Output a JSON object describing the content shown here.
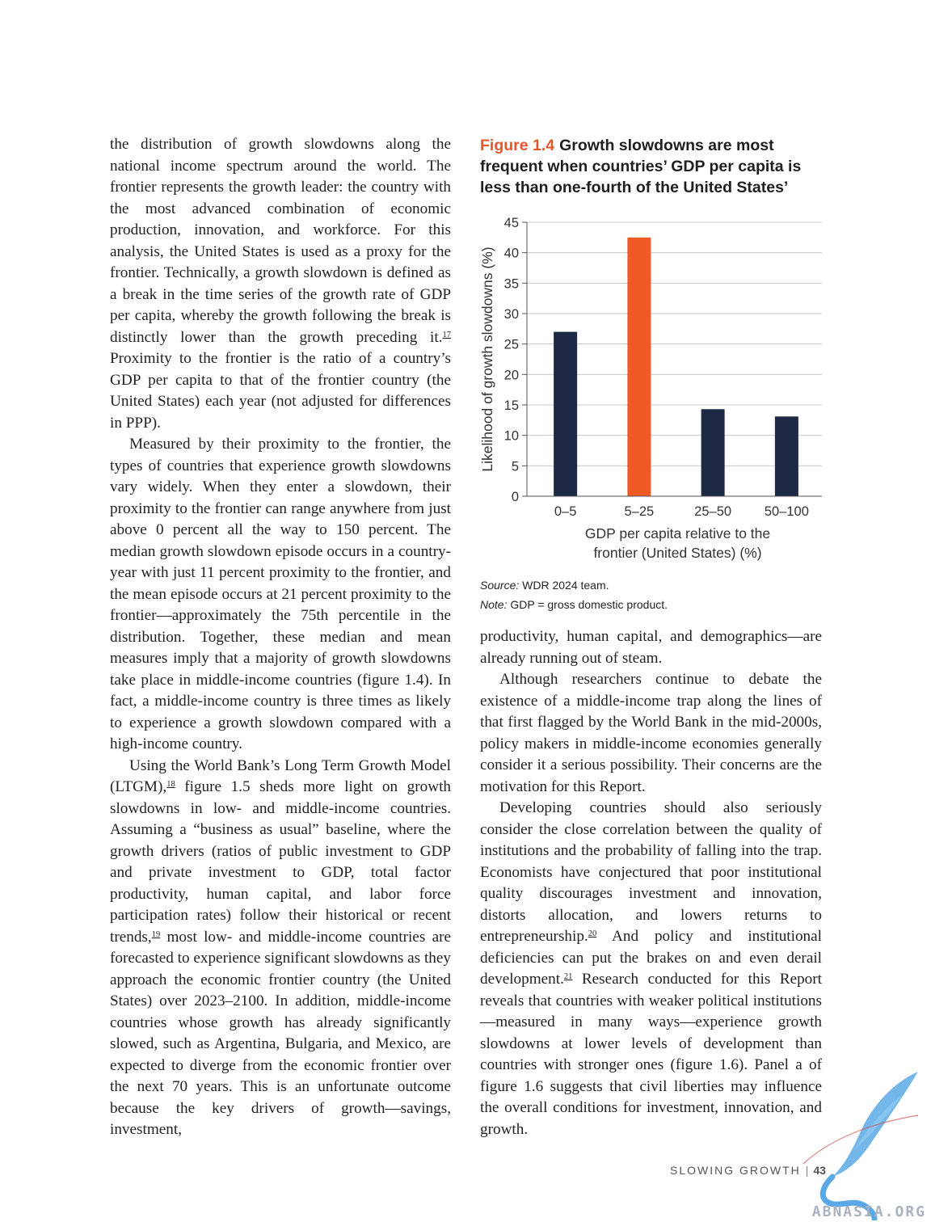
{
  "left_column": {
    "p1": "the distribution of growth slowdowns along the national income spectrum around the world. The frontier represents the growth leader: the country with the most advanced combination of economic production, innovation, and workforce. For this analysis, the United States is used as a proxy for the frontier. Technically, a growth slowdown is defined as a break in the time series of the growth rate of GDP per capita, whereby the growth follow­ing the break is distinctly lower than the growth preceding it.",
    "p1_fn": "17",
    "p1_cont": " Proximity to the frontier is the ratio of a country’s GDP per capita to that of the frontier country (the United States) each year (not adjusted for differences in PPP).",
    "p2": "Measured by their proximity to the frontier, the types of countries that experience growth slow­downs vary widely. When they enter a slowdown, their proximity to the frontier can range anywhere from just above 0 percent all the way to 150 percent. The median growth slowdown episode occurs in a country-year with just 11 percent proximity to the frontier, and the mean episode occurs at 21 per­cent proximity to the frontier—approximately the 75th percentile in the distribution. Together, these median and mean measures imply that a majority of growth slowdowns take place in middle-income countries (figure 1.4). In fact, a middle-income coun­try is three times as likely to experience a growth slowdown compared with a high-income country.",
    "p3_a": "Using the World Bank’s Long Term Growth Model (LTGM),",
    "p3_fn1": "18",
    "p3_b": " figure 1.5 sheds more light on growth slowdowns in low- and middle-income countries. Assuming a “business as usual” base­line, where the growth drivers (ratios of public investment to GDP and private investment to GDP, total factor productivity, human capital, and labor force participation rates) follow their historical or recent trends,",
    "p3_fn2": "19",
    "p3_c": " most low- and middle-income countries are forecasted to experience significant slowdowns as they approach the economic fron­tier country (the United States) over 2023–2100. In addition, middle-income countries whose growth has already significantly slowed, such as Argentina, Bulgaria, and Mexico, are expected to diverge from the economic frontier over the next 70 years. This is an unfortunate outcome because the key drivers of growth—savings, investment,"
  },
  "figure": {
    "number": "Figure 1.4",
    "title": "Growth slowdowns are most frequent when countries’ GDP per capita is less than one-fourth of the United States’",
    "source_label": "Source:",
    "source_text": " WDR 2024 team.",
    "note_label": "Note:",
    "note_text": " GDP = gross domestic product."
  },
  "chart_data": {
    "type": "bar",
    "categories": [
      "0–5",
      "5–25",
      "25–50",
      "50–100"
    ],
    "values": [
      27,
      42.5,
      14.3,
      13.1
    ],
    "bar_colors": [
      "#1e2a45",
      "#f05a24",
      "#1e2a45",
      "#1e2a45"
    ],
    "ylabel": "Likelihood  of growth slowdowns (%)",
    "xlabel_lines": [
      "GDP per capita relative to the",
      "frontier (United States) (%)"
    ],
    "ylim": [
      0,
      45
    ],
    "yticks": [
      0,
      5,
      10,
      15,
      20,
      25,
      30,
      35,
      40,
      45
    ],
    "grid": true
  },
  "right_column": {
    "p1": "productivity, human capital, and demographics—are already running out of steam.",
    "p2": "Although researchers continue to debate the existence of a middle-income trap along the lines of that first flagged by the World Bank in the mid-2000s, policy makers in middle-income econo­mies generally consider it a serious possibility. Their concerns are the motivation for this Report.",
    "p3_a": "Developing countries should also seriously consider the close correlation between the qual­ity of institutions and the probability of falling into the trap. Economists have conjectured that poor institutional quality discourages invest­ment and innovation, distorts allocation, and lowers returns to entrepreneurship.",
    "p3_fn1": "20",
    "p3_b": " And policy and institutional deficiencies can put the brakes on and even derail development.",
    "p3_fn2": "21",
    "p3_c": " Research con­ducted for this Report reveals that countries with weaker political institutions—measured in many ways—experience growth slowdowns at lower levels of development than countries with stron­ger ones (figure 1.6). Panel a of figure 1.6 suggests that civil liberties may influence the overall con­ditions for investment, innovation, and growth."
  },
  "footer": {
    "section": "SLOWING GROWTH",
    "separator": "|",
    "page_number": "43"
  },
  "watermark": {
    "text": "ABNASIA.ORG",
    "color": "#5aa9e6"
  }
}
